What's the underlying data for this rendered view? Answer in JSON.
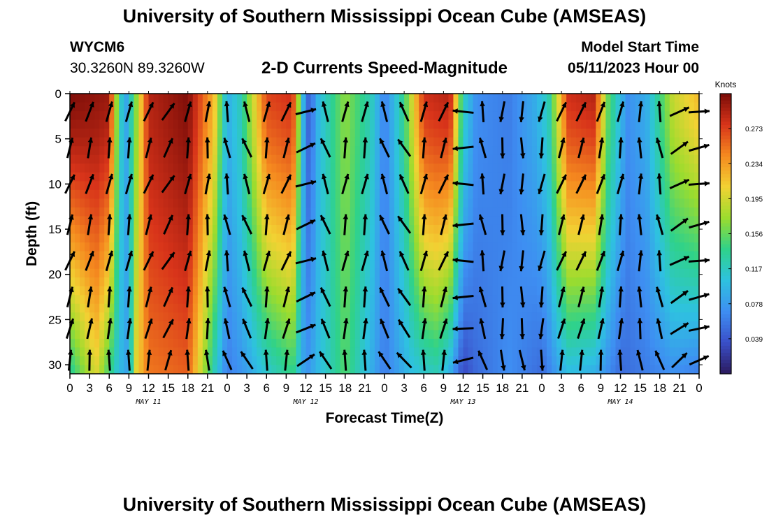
{
  "header": {
    "title": "University of Southern Mississippi Ocean Cube (AMSEAS)",
    "station_id": "WYCM6",
    "station_coords": "30.3260N  89.3260W",
    "chart_title": "2-D Currents Speed-Magnitude",
    "model_start_label": "Model Start Time",
    "model_start_value": "05/11/2023 Hour 00"
  },
  "footer": {
    "title": "University of Southern Mississippi Ocean Cube (AMSEAS)"
  },
  "chart_data": {
    "type": "heatmap",
    "title": "2-D Currents Speed-Magnitude",
    "xlabel": "Forecast Time(Z)",
    "ylabel": "Depth (ft)",
    "x_range_hours": [
      0,
      96
    ],
    "y_range_ft": [
      0,
      31
    ],
    "y_inverted": true,
    "x_ticks": [
      {
        "h": 0,
        "label": "0"
      },
      {
        "h": 3,
        "label": "3"
      },
      {
        "h": 6,
        "label": "6"
      },
      {
        "h": 9,
        "label": "9"
      },
      {
        "h": 12,
        "label": "12"
      },
      {
        "h": 15,
        "label": "15"
      },
      {
        "h": 18,
        "label": "18"
      },
      {
        "h": 21,
        "label": "21"
      },
      {
        "h": 24,
        "label": "0"
      },
      {
        "h": 27,
        "label": "3"
      },
      {
        "h": 30,
        "label": "6"
      },
      {
        "h": 33,
        "label": "9"
      },
      {
        "h": 36,
        "label": "12"
      },
      {
        "h": 39,
        "label": "15"
      },
      {
        "h": 42,
        "label": "18"
      },
      {
        "h": 45,
        "label": "21"
      },
      {
        "h": 48,
        "label": "0"
      },
      {
        "h": 51,
        "label": "3"
      },
      {
        "h": 54,
        "label": "6"
      },
      {
        "h": 57,
        "label": "9"
      },
      {
        "h": 60,
        "label": "12"
      },
      {
        "h": 63,
        "label": "15"
      },
      {
        "h": 66,
        "label": "18"
      },
      {
        "h": 69,
        "label": "21"
      },
      {
        "h": 72,
        "label": "0"
      },
      {
        "h": 75,
        "label": "3"
      },
      {
        "h": 78,
        "label": "6"
      },
      {
        "h": 81,
        "label": "9"
      },
      {
        "h": 84,
        "label": "12"
      },
      {
        "h": 87,
        "label": "15"
      },
      {
        "h": 90,
        "label": "18"
      },
      {
        "h": 93,
        "label": "21"
      },
      {
        "h": 96,
        "label": "0"
      }
    ],
    "day_labels": [
      {
        "h": 12,
        "label": "MAY 11"
      },
      {
        "h": 36,
        "label": "MAY 12"
      },
      {
        "h": 60,
        "label": "MAY 13"
      },
      {
        "h": 84,
        "label": "MAY 14"
      }
    ],
    "y_ticks": [
      0,
      5,
      10,
      15,
      20,
      25,
      30
    ],
    "colorbar": {
      "unit": "Knots",
      "range": [
        0.0,
        0.312
      ],
      "ticks": [
        "0.273",
        "0.234",
        "0.195",
        "0.156",
        "0.117",
        "0.078",
        "0.039"
      ],
      "colors": [
        "#2b1a5e",
        "#3a4fc8",
        "#3e8ef2",
        "#2ec2e0",
        "#2fd28a",
        "#9bdc2e",
        "#f2d233",
        "#f58a1f",
        "#d8341a",
        "#7a0c08"
      ]
    },
    "speed_profile_top": [
      {
        "h": 0,
        "v": 0.31
      },
      {
        "h": 6,
        "v": 0.3
      },
      {
        "h": 7.5,
        "v": 0.13
      },
      {
        "h": 8.5,
        "v": 0.08
      },
      {
        "h": 10,
        "v": 0.16
      },
      {
        "h": 12,
        "v": 0.29
      },
      {
        "h": 18,
        "v": 0.31
      },
      {
        "h": 22,
        "v": 0.22
      },
      {
        "h": 24,
        "v": 0.09
      },
      {
        "h": 26,
        "v": 0.12
      },
      {
        "h": 30,
        "v": 0.27
      },
      {
        "h": 34,
        "v": 0.28
      },
      {
        "h": 35.5,
        "v": 0.1
      },
      {
        "h": 36.5,
        "v": 0.04
      },
      {
        "h": 38,
        "v": 0.1
      },
      {
        "h": 42,
        "v": 0.17
      },
      {
        "h": 46,
        "v": 0.12
      },
      {
        "h": 48,
        "v": 0.06
      },
      {
        "h": 51,
        "v": 0.14
      },
      {
        "h": 54,
        "v": 0.28
      },
      {
        "h": 58,
        "v": 0.29
      },
      {
        "h": 60,
        "v": 0.12
      },
      {
        "h": 62,
        "v": 0.07
      },
      {
        "h": 67,
        "v": 0.06
      },
      {
        "h": 71,
        "v": 0.09
      },
      {
        "h": 73,
        "v": 0.12
      },
      {
        "h": 76,
        "v": 0.28
      },
      {
        "h": 80,
        "v": 0.29
      },
      {
        "h": 82,
        "v": 0.16
      },
      {
        "h": 85,
        "v": 0.07
      },
      {
        "h": 88,
        "v": 0.09
      },
      {
        "h": 92,
        "v": 0.19
      },
      {
        "h": 96,
        "v": 0.22
      }
    ],
    "speed_profile_bottom": [
      {
        "h": 0,
        "v": 0.13
      },
      {
        "h": 4,
        "v": 0.2
      },
      {
        "h": 7.5,
        "v": 0.1
      },
      {
        "h": 9,
        "v": 0.08
      },
      {
        "h": 10,
        "v": 0.2
      },
      {
        "h": 12,
        "v": 0.25
      },
      {
        "h": 18,
        "v": 0.26
      },
      {
        "h": 22,
        "v": 0.12
      },
      {
        "h": 24,
        "v": 0.06
      },
      {
        "h": 27,
        "v": 0.08
      },
      {
        "h": 30,
        "v": 0.11
      },
      {
        "h": 34,
        "v": 0.14
      },
      {
        "h": 36,
        "v": 0.07
      },
      {
        "h": 38,
        "v": 0.1
      },
      {
        "h": 42,
        "v": 0.15
      },
      {
        "h": 46,
        "v": 0.09
      },
      {
        "h": 48,
        "v": 0.06
      },
      {
        "h": 52,
        "v": 0.1
      },
      {
        "h": 56,
        "v": 0.12
      },
      {
        "h": 58,
        "v": 0.09
      },
      {
        "h": 60,
        "v": 0.03
      },
      {
        "h": 62,
        "v": 0.05
      },
      {
        "h": 67,
        "v": 0.07
      },
      {
        "h": 72,
        "v": 0.05
      },
      {
        "h": 76,
        "v": 0.1
      },
      {
        "h": 80,
        "v": 0.09
      },
      {
        "h": 84,
        "v": 0.05
      },
      {
        "h": 88,
        "v": 0.06
      },
      {
        "h": 92,
        "v": 0.07
      },
      {
        "h": 96,
        "v": 0.06
      }
    ],
    "arrow_times_hours": [
      0,
      3,
      6,
      9,
      12,
      15,
      18,
      21,
      24,
      27,
      30,
      33,
      36,
      39,
      42,
      45,
      48,
      51,
      54,
      57,
      60,
      63,
      66,
      69,
      72,
      75,
      78,
      81,
      84,
      87,
      90,
      93,
      96
    ],
    "arrow_depths_ft": [
      2,
      6,
      10,
      14.5,
      18.5,
      22.5,
      26,
      29.5
    ],
    "arrow_direction_by_time_deg": [
      70,
      75,
      80,
      80,
      70,
      60,
      80,
      85,
      100,
      110,
      80,
      70,
      20,
      110,
      80,
      80,
      110,
      120,
      80,
      70,
      180,
      100,
      265,
      270,
      260,
      70,
      70,
      75,
      80,
      90,
      100,
      30,
      10
    ]
  }
}
